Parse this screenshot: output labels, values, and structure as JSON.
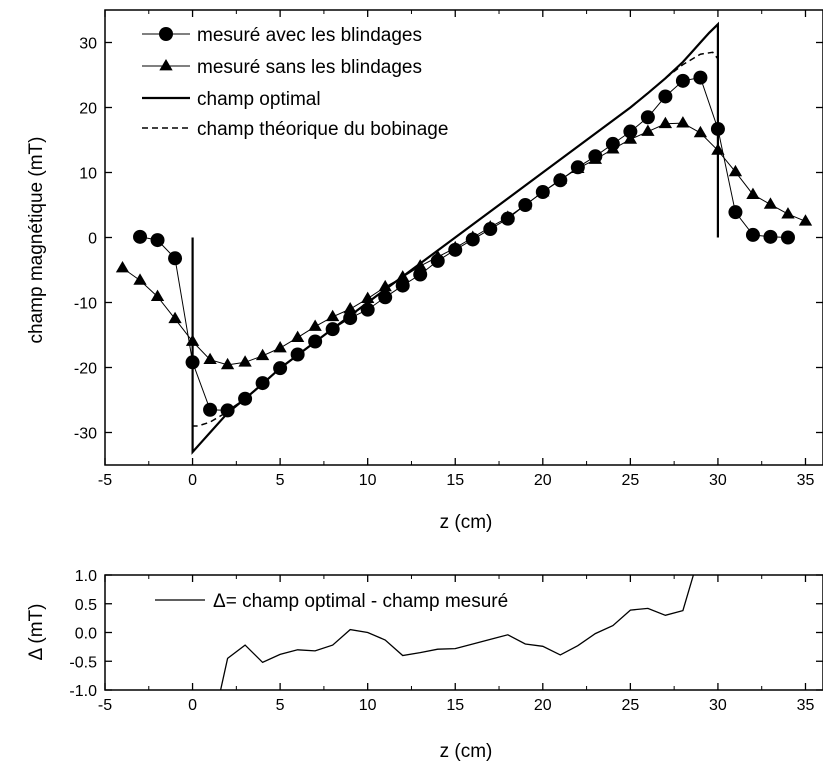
{
  "chart_data": [
    {
      "type": "line",
      "xlabel": "z (cm)",
      "ylabel": "champ magnétique (mT)",
      "xlim": [
        -5,
        36
      ],
      "ylim": [
        -35,
        35
      ],
      "xticks": [
        "-5",
        "0",
        "5",
        "10",
        "15",
        "20",
        "25",
        "30",
        "35"
      ],
      "yticks": [
        "30",
        "20",
        "10",
        "0",
        "-10",
        "-20",
        "-30"
      ],
      "legend_placement": "top-left",
      "series": [
        {
          "name": "mesuré avec les blindages",
          "marker": "circle",
          "line": "thin-solid",
          "x": [
            -3,
            -2,
            -1,
            0,
            1,
            2,
            3,
            4,
            5,
            6,
            7,
            8,
            9,
            10,
            11,
            12,
            13,
            14,
            15,
            16,
            17,
            18,
            19,
            20,
            21,
            22,
            23,
            24,
            25,
            26,
            27,
            28,
            29,
            30,
            31,
            32,
            33,
            34
          ],
          "y": [
            0.1,
            -0.4,
            -3.2,
            -19.2,
            -26.5,
            -26.6,
            -24.8,
            -22.4,
            -20.1,
            -18.0,
            -16.0,
            -14.1,
            -12.4,
            -11.1,
            -9.2,
            -7.4,
            -5.7,
            -3.6,
            -1.9,
            -0.3,
            1.3,
            2.9,
            5.0,
            7.0,
            8.8,
            10.8,
            12.5,
            14.4,
            16.3,
            18.5,
            21.7,
            24.1,
            24.6,
            16.7,
            3.9,
            0.4,
            0.1,
            0.0
          ]
        },
        {
          "name": "mesuré sans les blindages",
          "marker": "triangle",
          "line": "thin-solid",
          "x": [
            -4,
            -3,
            -2,
            -1,
            0,
            1,
            2,
            3,
            4,
            5,
            6,
            7,
            8,
            9,
            10,
            11,
            12,
            13,
            14,
            15,
            16,
            17,
            18,
            19,
            20,
            21,
            22,
            23,
            24,
            25,
            26,
            27,
            28,
            29,
            30,
            31,
            32,
            33,
            34,
            35
          ],
          "y": [
            -4.7,
            -6.6,
            -9.1,
            -12.5,
            -16.0,
            -18.8,
            -19.6,
            -19.2,
            -18.2,
            -17.0,
            -15.4,
            -13.7,
            -12.2,
            -11.0,
            -9.4,
            -7.6,
            -6.1,
            -4.4,
            -3.0,
            -1.6,
            0.0,
            1.6,
            3.1,
            5.0,
            7.0,
            8.9,
            10.6,
            12.0,
            13.6,
            15.1,
            16.3,
            17.5,
            17.6,
            16.1,
            13.4,
            10.1,
            6.6,
            5.1,
            3.6,
            2.5
          ]
        },
        {
          "name": "champ optimal",
          "line": "thick-solid",
          "x": [
            0,
            0,
            0.5,
            1,
            1.5,
            2,
            3,
            4,
            5,
            10,
            15,
            20,
            25,
            26,
            27,
            28,
            28.5,
            29,
            29.5,
            30,
            30
          ],
          "y": [
            0,
            -33.0,
            -31.5,
            -30.0,
            -28.5,
            -27.0,
            -24.8,
            -22.5,
            -20.1,
            -10.0,
            0.0,
            10.0,
            20.0,
            22.2,
            24.5,
            27.0,
            28.5,
            30.0,
            31.5,
            32.8,
            0
          ]
        },
        {
          "name": "champ théorique du bobinage",
          "line": "dashed",
          "x": [
            0,
            0,
            0.3,
            1,
            2,
            3,
            5,
            10,
            15,
            20,
            25,
            27,
            28,
            29,
            29.7,
            30,
            30
          ],
          "y": [
            -15,
            -29.0,
            -29.0,
            -28.4,
            -26.8,
            -24.8,
            -20.1,
            -10.0,
            0.0,
            10.0,
            20.0,
            24.5,
            26.6,
            28.2,
            28.5,
            27.5,
            0
          ]
        }
      ]
    },
    {
      "type": "line",
      "xlabel": "z (cm)",
      "ylabel": "Δ (mT)",
      "xlim": [
        -5,
        36
      ],
      "ylim": [
        -1.0,
        1.0
      ],
      "xticks": [
        "-5",
        "0",
        "5",
        "10",
        "15",
        "20",
        "25",
        "30",
        "35"
      ],
      "yticks": [
        "1.0",
        "0.5",
        "0.0",
        "-0.5",
        "-1.0"
      ],
      "series": [
        {
          "name": "Δ= champ optimal - champ mesuré",
          "x": [
            1.6,
            2,
            3,
            4,
            5,
            6,
            7,
            8,
            9,
            10,
            11,
            12,
            13,
            14,
            15,
            16,
            17,
            18,
            19,
            20,
            21,
            22,
            23,
            24,
            25,
            26,
            27,
            28,
            28.6
          ],
          "y": [
            -1.0,
            -0.45,
            -0.22,
            -0.52,
            -0.38,
            -0.3,
            -0.32,
            -0.22,
            0.05,
            0.0,
            -0.13,
            -0.4,
            -0.35,
            -0.29,
            -0.28,
            -0.2,
            -0.12,
            -0.04,
            -0.2,
            -0.24,
            -0.39,
            -0.23,
            -0.02,
            0.12,
            0.39,
            0.42,
            0.3,
            0.38,
            1.0
          ]
        }
      ]
    }
  ]
}
